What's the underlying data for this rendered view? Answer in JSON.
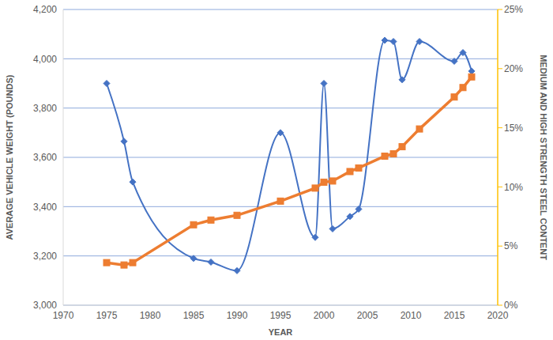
{
  "chart_data": {
    "type": "line",
    "x_label": "YEAR",
    "y_label": "AVERAGE VEHICLE WEIGHT (POUNDS)",
    "y2_label": "MEDIUM AND HIGH STRENGTH STEEL CONTENT",
    "x": [
      1975,
      1977,
      1978,
      1985,
      1987,
      1990,
      1995,
      1999,
      2000,
      2001,
      2003,
      2004,
      2007,
      2008,
      2009,
      2011,
      2015,
      2016,
      2017
    ],
    "series": [
      {
        "color": "#4472c4",
        "marker": "diamond",
        "line_style": "smooth",
        "axis": "y",
        "values": [
          3900,
          3665,
          3500,
          3190,
          3175,
          3140,
          3700,
          3275,
          3900,
          3310,
          3360,
          3390,
          4075,
          4070,
          3915,
          4070,
          3990,
          4025,
          3950
        ]
      },
      {
        "color": "#ed7d31",
        "marker": "square",
        "line_style": "solid",
        "axis": "y2",
        "values": [
          3.6,
          3.4,
          3.6,
          6.8,
          7.2,
          7.6,
          8.8,
          9.9,
          10.4,
          10.5,
          11.3,
          11.6,
          12.6,
          12.8,
          13.4,
          14.9,
          17.6,
          18.4,
          19.3
        ]
      }
    ],
    "xlim": [
      1970,
      2020
    ],
    "xticks": [
      1970,
      1975,
      1980,
      1985,
      1990,
      1995,
      2000,
      2005,
      2010,
      2015,
      2020
    ],
    "ylim": [
      3000,
      4200
    ],
    "yticks": [
      {
        "value": 3000,
        "label": "3,000"
      },
      {
        "value": 3200,
        "label": "3,200"
      },
      {
        "value": 3400,
        "label": "3,400"
      },
      {
        "value": 3600,
        "label": "3,600"
      },
      {
        "value": 3800,
        "label": "3,800"
      },
      {
        "value": 4000,
        "label": "4,000"
      },
      {
        "value": 4200,
        "label": "4,200"
      }
    ],
    "y2lim": [
      0,
      25
    ],
    "y2ticks": [
      {
        "value": 0,
        "label": "0%"
      },
      {
        "value": 5,
        "label": "5%"
      },
      {
        "value": 10,
        "label": "10%"
      },
      {
        "value": 15,
        "label": "15%"
      },
      {
        "value": 20,
        "label": "20%"
      },
      {
        "value": 25,
        "label": "25%"
      }
    ],
    "grid": true
  }
}
